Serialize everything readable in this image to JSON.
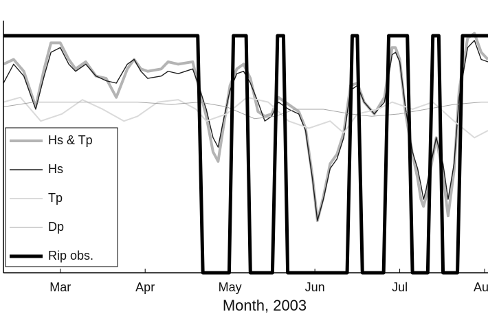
{
  "chart_data": {
    "type": "line",
    "x_label": "Month, 2003",
    "xlim": [
      2.33,
      8.04
    ],
    "xticks": [
      {
        "value": 3,
        "label": "Mar"
      },
      {
        "value": 4,
        "label": "Apr"
      },
      {
        "value": 5,
        "label": "May"
      },
      {
        "value": 6,
        "label": "Jun"
      },
      {
        "value": 7,
        "label": "Jul"
      },
      {
        "value": 8,
        "label": "Aug"
      }
    ],
    "ylim": [
      0,
      1.04
    ],
    "legend": "lower-left",
    "series": [
      {
        "name": "Hs & Tp",
        "color": "#b4b4b4",
        "width": 4,
        "x": [
          2.33,
          2.45,
          2.57,
          2.71,
          2.81,
          2.89,
          3.0,
          3.1,
          3.18,
          3.3,
          3.42,
          3.54,
          3.66,
          3.79,
          3.87,
          3.95,
          4.03,
          4.19,
          4.27,
          4.39,
          4.56,
          4.62,
          4.72,
          4.8,
          4.86,
          4.92,
          5.0,
          5.08,
          5.16,
          5.24,
          5.33,
          5.41,
          5.49,
          5.57,
          5.69,
          5.81,
          5.89,
          5.97,
          6.03,
          6.1,
          6.18,
          6.26,
          6.34,
          6.42,
          6.5,
          6.58,
          6.7,
          6.82,
          6.91,
          6.95,
          7.0,
          7.07,
          7.15,
          7.21,
          7.25,
          7.28,
          7.31,
          7.35,
          7.43,
          7.51,
          7.57,
          7.64,
          7.7,
          7.8,
          7.88,
          7.96,
          8.04
        ],
        "values": [
          0.88,
          0.9,
          0.85,
          0.7,
          0.86,
          0.97,
          0.97,
          0.9,
          0.86,
          0.89,
          0.83,
          0.82,
          0.74,
          0.86,
          0.9,
          0.86,
          0.85,
          0.86,
          0.89,
          0.88,
          0.89,
          0.8,
          0.66,
          0.51,
          0.47,
          0.61,
          0.79,
          0.86,
          0.88,
          0.82,
          0.68,
          0.66,
          0.67,
          0.74,
          0.71,
          0.68,
          0.61,
          0.41,
          0.22,
          0.32,
          0.46,
          0.5,
          0.59,
          0.79,
          0.8,
          0.72,
          0.67,
          0.74,
          0.95,
          0.95,
          0.9,
          0.67,
          0.5,
          0.4,
          0.31,
          0.28,
          0.32,
          0.41,
          0.57,
          0.41,
          0.24,
          0.43,
          0.77,
          0.99,
          1.01,
          0.93,
          0.9
        ]
      },
      {
        "name": "Hs",
        "color": "#1e1e1e",
        "width": 1.4,
        "x": [
          2.33,
          2.45,
          2.57,
          2.71,
          2.81,
          2.89,
          3.0,
          3.1,
          3.18,
          3.3,
          3.42,
          3.54,
          3.66,
          3.79,
          3.87,
          3.95,
          4.03,
          4.19,
          4.27,
          4.39,
          4.56,
          4.62,
          4.72,
          4.8,
          4.86,
          4.92,
          5.0,
          5.08,
          5.16,
          5.24,
          5.33,
          5.41,
          5.49,
          5.57,
          5.69,
          5.81,
          5.89,
          5.97,
          6.03,
          6.1,
          6.18,
          6.26,
          6.34,
          6.42,
          6.5,
          6.58,
          6.7,
          6.82,
          6.91,
          6.95,
          7.0,
          7.07,
          7.15,
          7.21,
          7.25,
          7.28,
          7.31,
          7.35,
          7.43,
          7.51,
          7.57,
          7.64,
          7.7,
          7.8,
          7.88,
          7.96,
          8.04
        ],
        "values": [
          0.8,
          0.88,
          0.83,
          0.69,
          0.83,
          0.93,
          0.95,
          0.88,
          0.85,
          0.88,
          0.83,
          0.81,
          0.8,
          0.88,
          0.9,
          0.85,
          0.82,
          0.83,
          0.85,
          0.84,
          0.86,
          0.8,
          0.69,
          0.57,
          0.53,
          0.64,
          0.77,
          0.84,
          0.85,
          0.8,
          0.72,
          0.64,
          0.66,
          0.72,
          0.69,
          0.67,
          0.6,
          0.4,
          0.22,
          0.31,
          0.44,
          0.48,
          0.57,
          0.77,
          0.79,
          0.72,
          0.67,
          0.72,
          0.92,
          0.93,
          0.89,
          0.69,
          0.51,
          0.44,
          0.37,
          0.31,
          0.35,
          0.43,
          0.57,
          0.46,
          0.31,
          0.46,
          0.74,
          0.95,
          0.98,
          0.9,
          0.89
        ]
      },
      {
        "name": "Tp",
        "color": "#dadada",
        "width": 2,
        "x": [
          2.33,
          2.53,
          2.77,
          3.02,
          3.26,
          3.5,
          3.75,
          3.91,
          4.15,
          4.39,
          4.6,
          4.72,
          4.96,
          5.2,
          5.45,
          5.69,
          5.93,
          6.18,
          6.34,
          6.5,
          6.74,
          6.91,
          7.15,
          7.39,
          7.64,
          7.88,
          8.04
        ],
        "values": [
          0.72,
          0.74,
          0.64,
          0.67,
          0.73,
          0.69,
          0.64,
          0.66,
          0.72,
          0.73,
          0.69,
          0.64,
          0.67,
          0.74,
          0.72,
          0.64,
          0.61,
          0.64,
          0.59,
          0.67,
          0.69,
          0.72,
          0.69,
          0.72,
          0.64,
          0.57,
          0.6
        ]
      },
      {
        "name": "Dp",
        "color": "#a6a6a6",
        "width": 1,
        "x": [
          2.33,
          2.69,
          3.1,
          3.5,
          3.91,
          4.31,
          4.64,
          4.96,
          5.29,
          5.53,
          5.77,
          6.1,
          6.42,
          6.67,
          6.99,
          7.31,
          7.64,
          7.96,
          8.04
        ],
        "values": [
          0.7,
          0.72,
          0.72,
          0.72,
          0.72,
          0.71,
          0.72,
          0.7,
          0.65,
          0.66,
          0.69,
          0.69,
          0.67,
          0.66,
          0.67,
          0.69,
          0.71,
          0.72,
          0.72
        ]
      },
      {
        "name": "Rip obs.",
        "color": "#000000",
        "width": 5,
        "x": [
          2.33,
          4.62,
          4.68,
          4.99,
          5.04,
          5.19,
          5.24,
          5.5,
          5.56,
          5.63,
          5.68,
          6.38,
          6.44,
          6.5,
          6.56,
          6.81,
          6.87,
          7.09,
          7.15,
          7.33,
          7.39,
          7.46,
          7.51,
          7.68,
          7.74,
          8.04
        ],
        "values": [
          1,
          1,
          0,
          0,
          1,
          1,
          0,
          0,
          1,
          1,
          0,
          0,
          1,
          1,
          0,
          0,
          1,
          1,
          0,
          0,
          1,
          1,
          0,
          0,
          1,
          1
        ]
      }
    ]
  }
}
